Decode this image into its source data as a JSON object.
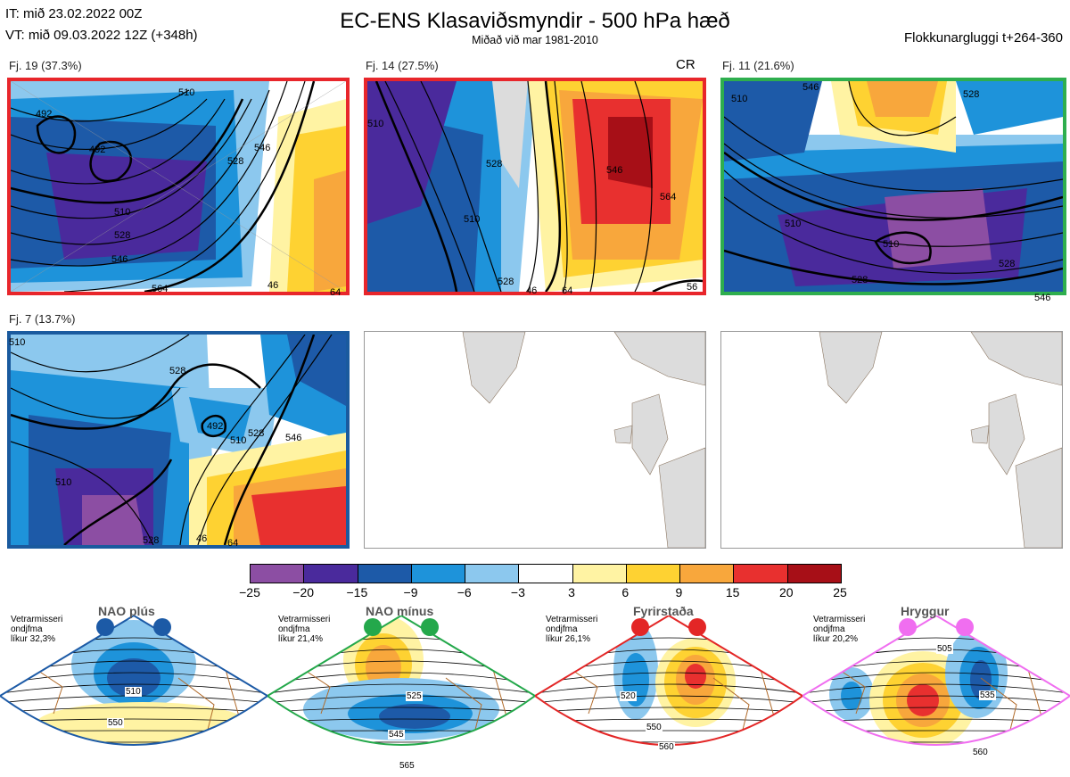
{
  "header": {
    "it": "IT: mið 23.02.2022 00Z",
    "vt": "VT: mið 09.03.2022 12Z  (+348h)",
    "title": "EC-ENS Klasaviðsmyndir - 500 hPa hæð",
    "subtitle": "Miðað við mar 1981-2010",
    "window": "Flokkunargluggi t+264-360"
  },
  "panels": [
    {
      "label": "Fj. 19 (37.3%)",
      "border": "#e8262b",
      "contours": [
        "492",
        "492",
        "510",
        "528",
        "546",
        "564",
        "510",
        "528",
        "546",
        "46",
        "64"
      ]
    },
    {
      "label": "Fj. 14 (27.5%)",
      "border": "#e8262b",
      "tag": "CR",
      "contours": [
        "510",
        "510",
        "528",
        "546",
        "564",
        "528",
        "46",
        "64",
        "56"
      ]
    },
    {
      "label": "Fj. 11 (21.6%)",
      "border": "#2eae4e",
      "contours": [
        "510",
        "546",
        "528",
        "510",
        "510",
        "528",
        "528",
        "546"
      ]
    },
    {
      "label": "Fj. 7 (13.7%)",
      "border": "#1a5a9e",
      "contours": [
        "510",
        "528",
        "492",
        "510",
        "528",
        "546",
        "510",
        "528",
        "46",
        "64"
      ]
    },
    {
      "label": "",
      "border": "#999999"
    },
    {
      "label": "",
      "border": "#999999"
    }
  ],
  "colorbar": {
    "ticks": [
      "−25",
      "−20",
      "−15",
      "−9",
      "−6",
      "−3",
      "3",
      "6",
      "9",
      "15",
      "20",
      "25"
    ],
    "colors": [
      "#8c4ea3",
      "#4a2a9c",
      "#1d5aa8",
      "#1e93da",
      "#8cc8ee",
      "#ffffff",
      "#fff3a3",
      "#fed232",
      "#f8a73c",
      "#e8302f",
      "#a70f17"
    ]
  },
  "regimes": [
    {
      "name": "NAO plús",
      "note": [
        "Vetrarmisseri",
        "ondjfma",
        "líkur 32,3%"
      ],
      "color": "#1c5aa6",
      "contours": [
        "510",
        "550"
      ]
    },
    {
      "name": "NAO mínus",
      "note": [
        "Vetrarmisseri",
        "ondjfma",
        "líkur 21,4%"
      ],
      "color": "#24a84b",
      "contours": [
        "525",
        "545",
        "565"
      ]
    },
    {
      "name": "Fyrirstaða",
      "note": [
        "Vetrarmisseri",
        "ondjfma",
        "líkur 26,1%"
      ],
      "color": "#e32626",
      "contours": [
        "520",
        "550",
        "560"
      ]
    },
    {
      "name": "Hryggur",
      "note": [
        "Vetrarmisseri",
        "ondjfma",
        "líkur 20,2%"
      ],
      "color": "#f06ef0",
      "contours": [
        "505",
        "535",
        "560"
      ]
    }
  ]
}
